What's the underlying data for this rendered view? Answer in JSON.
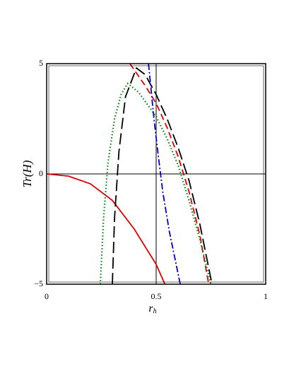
{
  "chart_data": {
    "type": "line",
    "xlabel": "r",
    "xlabel_sub": "h",
    "ylabel": "Tr(H)",
    "xlim": [
      0,
      1
    ],
    "ylim": [
      -5,
      5
    ],
    "xticks": [
      0,
      0.5,
      1
    ],
    "yticks": [
      {
        "value": -5,
        "label": "−5"
      },
      0,
      5
    ],
    "hlines": [
      0
    ],
    "vlines": [
      0.5
    ],
    "series": [
      {
        "color": "#e00000",
        "style": "solid",
        "x": [
          0,
          0.1,
          0.2,
          0.3,
          0.4,
          0.5,
          0.54
        ],
        "values": [
          0,
          -0.1,
          -0.45,
          -1.2,
          -2.5,
          -4.1,
          -5
        ]
      },
      {
        "color": "#e00000",
        "style": "dashed",
        "x": [
          0.38,
          0.45,
          0.5,
          0.55,
          0.6,
          0.65,
          0.7,
          0.74
        ],
        "values": [
          5,
          4,
          3.2,
          2.1,
          0.8,
          -0.8,
          -2.8,
          -5
        ]
      },
      {
        "color": "#000000",
        "style": "longdash",
        "x": [
          0.3,
          0.31,
          0.33,
          0.36,
          0.41,
          0.45,
          0.5,
          0.55,
          0.6,
          0.65,
          0.7,
          0.755
        ],
        "values": [
          -5,
          -2,
          1,
          3.5,
          4.8,
          4.5,
          3.6,
          2.5,
          1.2,
          -0.3,
          -2.3,
          -5
        ]
      },
      {
        "color": "#007f00",
        "style": "dotted",
        "x": [
          0.245,
          0.26,
          0.28,
          0.31,
          0.34,
          0.37,
          0.42,
          0.5,
          0.55,
          0.6,
          0.65,
          0.7,
          0.75
        ],
        "values": [
          -5,
          -2,
          0.5,
          2.5,
          3.6,
          4.1,
          3.7,
          2.6,
          1.6,
          0.4,
          -1.2,
          -3,
          -5
        ]
      },
      {
        "color": "#0000cc",
        "style": "dashdot",
        "x": [
          0.465,
          0.49,
          0.51,
          0.53,
          0.56,
          0.61
        ],
        "values": [
          5,
          2.5,
          0.8,
          -0.8,
          -2.6,
          -5
        ]
      }
    ]
  }
}
